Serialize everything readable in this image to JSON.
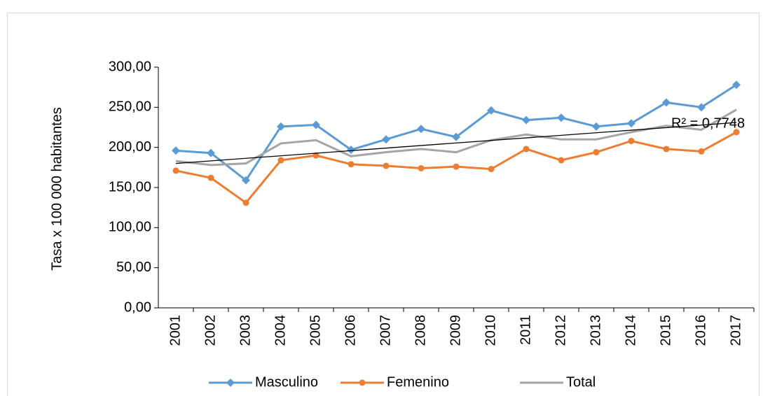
{
  "chart_data": {
    "type": "line",
    "y_label": "Tasa x 100 000 habitantes",
    "categories": [
      "2001",
      "2002",
      "2003",
      "2004",
      "2005",
      "2006",
      "2007",
      "2008",
      "2009",
      "2010",
      "2011",
      "2012",
      "2013",
      "2014",
      "2015",
      "2016",
      "2017"
    ],
    "series": [
      {
        "name": "Masculino",
        "color": "#5b9bd5",
        "marker": "diamond",
        "values": [
          196,
          193,
          159,
          226,
          228,
          197,
          210,
          223,
          213,
          246,
          234,
          237,
          226,
          230,
          256,
          250,
          278
        ]
      },
      {
        "name": "Femenino",
        "color": "#ed7d31",
        "marker": "circle",
        "values": [
          171,
          162,
          131,
          184,
          190,
          179,
          177,
          174,
          176,
          173,
          198,
          184,
          194,
          208,
          198,
          195,
          219
        ]
      },
      {
        "name": "Total",
        "color": "#a5a5a5",
        "marker": "none",
        "values": [
          183,
          178,
          180,
          205,
          209,
          189,
          194,
          198,
          194,
          209,
          216,
          210,
          210,
          219,
          227,
          222,
          247
        ]
      }
    ],
    "trendline": {
      "color": "#000000",
      "start": 180,
      "end": 231,
      "label": "R² = 0,7748"
    },
    "ylim": [
      0,
      300
    ],
    "yticks": [
      {
        "value": 0,
        "label": "0,00"
      },
      {
        "value": 50,
        "label": "50,00"
      },
      {
        "value": 100,
        "label": "100,00"
      },
      {
        "value": 150,
        "label": "150,00"
      },
      {
        "value": 200,
        "label": "200,00"
      },
      {
        "value": 250,
        "label": "250,00"
      },
      {
        "value": 300,
        "label": "300,00"
      }
    ],
    "grid": false,
    "legend": "bottom"
  }
}
